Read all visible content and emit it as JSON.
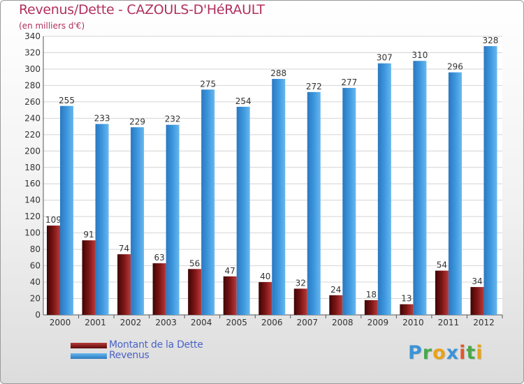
{
  "chart_data": {
    "type": "bar",
    "title": "Revenus/Dette - CAZOULS-D'HéRAULT",
    "subtitle": "(en milliers d'€)",
    "categories": [
      "2000",
      "2001",
      "2002",
      "2003",
      "2004",
      "2005",
      "2006",
      "2007",
      "2008",
      "2009",
      "2010",
      "2011",
      "2012"
    ],
    "series": [
      {
        "name": "Montant de la Dette",
        "color": "#7a1212",
        "values": [
          109,
          91,
          74,
          63,
          56,
          47,
          40,
          32,
          24,
          18,
          13,
          54,
          34
        ]
      },
      {
        "name": "Revenus",
        "color": "#3d97dd",
        "values": [
          255,
          233,
          229,
          232,
          275,
          254,
          288,
          272,
          277,
          307,
          310,
          296,
          328
        ]
      }
    ],
    "ylim": [
      0,
      340
    ],
    "yticks": [
      0,
      20,
      40,
      60,
      80,
      100,
      120,
      140,
      160,
      180,
      200,
      220,
      240,
      260,
      280,
      300,
      320,
      340
    ],
    "grid": true,
    "legend_position": "bottom-left"
  },
  "logo": {
    "letters": [
      {
        "ch": "P",
        "color": "#3b93d6"
      },
      {
        "ch": "r",
        "color": "#4aa84a"
      },
      {
        "ch": "o",
        "color": "#e8a21a"
      },
      {
        "ch": "x",
        "color": "#3b93d6"
      },
      {
        "ch": "i",
        "color": "#e2572b"
      },
      {
        "ch": "t",
        "color": "#4aa84a"
      },
      {
        "ch": "i",
        "color": "#e8a21a"
      }
    ]
  }
}
